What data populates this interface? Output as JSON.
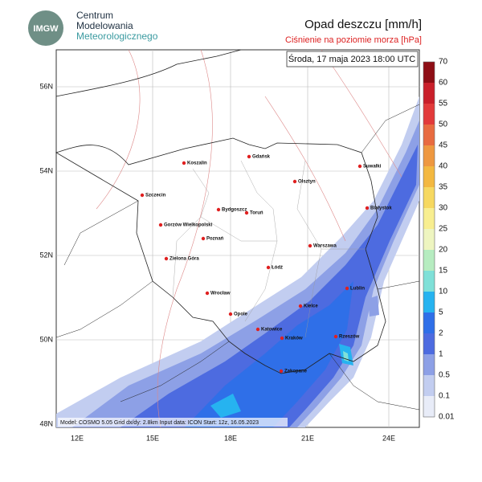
{
  "logo": {
    "text": "IMGW",
    "lines": [
      "Centrum",
      "Modelowania",
      "Meteorologicznego"
    ]
  },
  "title": "Opad deszczu [mm/h]",
  "subtitle": "Ciśnienie na poziomie morza [hPa]",
  "timestamp": "Środa, 17 maja 2023 18:00 UTC",
  "footer": "Model: COSMO 5.05  Grid dx/dy: 2.8km  Input data: ICON  Start: 12z, 16.05.2023",
  "lat_labels": [
    "56N",
    "54N",
    "52N",
    "50N",
    "48N"
  ],
  "lon_labels": [
    "12E",
    "15E",
    "18E",
    "21E",
    "24E"
  ],
  "cities": [
    "Koszalin",
    "Gdańsk",
    "Suwałki",
    "Olsztyn",
    "Szczecin",
    "Białystok",
    "Bydgoszcz",
    "Toruń",
    "Gorzów Wielkopolski",
    "Poznań",
    "Warszawa",
    "Zielona Góra",
    "Łódź",
    "Lublin",
    "Wrocław",
    "Kielce",
    "Opole",
    "Katowice",
    "Kraków",
    "Rzeszów",
    "Zakopane"
  ],
  "colorbar": {
    "levels": [
      70,
      60,
      55,
      50,
      45,
      40,
      35,
      30,
      25,
      20,
      15,
      10,
      5,
      2,
      1,
      0.5,
      0.1,
      0.01
    ],
    "colors": [
      "#8e0e15",
      "#c91f2a",
      "#e23a3a",
      "#e86b40",
      "#ee9840",
      "#f3b840",
      "#f6d860",
      "#f8ee90",
      "#eef5c0",
      "#b6ecc0",
      "#7fe0d8",
      "#26b3f0",
      "#2f6fe8",
      "#4d6be0",
      "#8da0e6",
      "#c2cdf0",
      "#e8ecf8"
    ]
  }
}
